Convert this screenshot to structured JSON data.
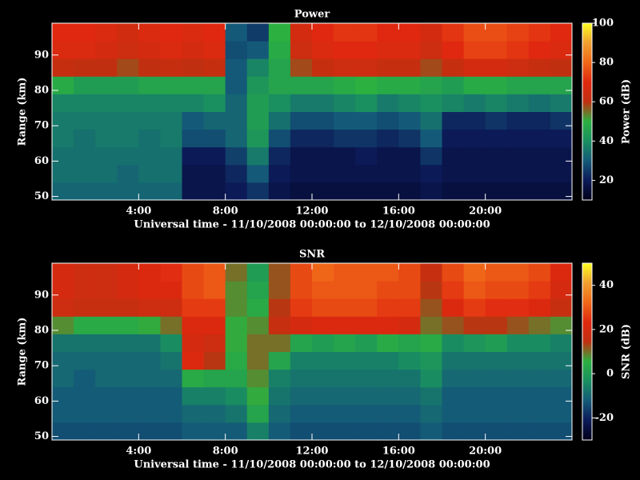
{
  "chart_data": [
    {
      "type": "heatmap",
      "title": "Power",
      "xlabel": "Universal time - 11/10/2008 00:00:00 to 12/10/2008 00:00:00",
      "ylabel": "Range (km)",
      "zlabel": "Power (dB)",
      "x": [
        0.5,
        1.5,
        2.5,
        3.5,
        4.5,
        5.5,
        6.5,
        7.5,
        8.5,
        9.5,
        10.5,
        11.5,
        12.5,
        13.5,
        14.5,
        15.5,
        16.5,
        17.5,
        18.5,
        19.5,
        20.5,
        21.5,
        22.5,
        23.5
      ],
      "y": [
        51.5,
        56.5,
        61.5,
        66.5,
        71.5,
        76.5,
        81.5,
        86.5,
        91.5,
        96.5
      ],
      "z": [
        [
          32,
          32,
          32,
          32,
          32,
          32,
          18,
          18,
          20,
          24,
          18,
          16,
          16,
          16,
          16,
          16,
          16,
          18,
          16,
          16,
          16,
          16,
          16,
          16
        ],
        [
          34,
          34,
          34,
          32,
          34,
          34,
          18,
          18,
          22,
          30,
          20,
          18,
          18,
          18,
          18,
          18,
          18,
          20,
          18,
          18,
          18,
          18,
          18,
          18
        ],
        [
          34,
          34,
          34,
          34,
          34,
          34,
          20,
          20,
          26,
          36,
          22,
          18,
          18,
          18,
          20,
          18,
          18,
          24,
          18,
          18,
          18,
          18,
          18,
          18
        ],
        [
          36,
          34,
          36,
          36,
          34,
          36,
          28,
          28,
          32,
          42,
          28,
          22,
          22,
          24,
          24,
          22,
          24,
          30,
          20,
          20,
          20,
          20,
          20,
          20
        ],
        [
          36,
          36,
          36,
          36,
          36,
          36,
          30,
          32,
          32,
          44,
          34,
          28,
          28,
          30,
          30,
          28,
          30,
          34,
          22,
          22,
          24,
          22,
          22,
          24
        ],
        [
          38,
          38,
          38,
          38,
          38,
          38,
          38,
          40,
          32,
          44,
          40,
          36,
          36,
          38,
          40,
          36,
          38,
          40,
          38,
          36,
          38,
          36,
          34,
          36
        ],
        [
          48,
          44,
          44,
          44,
          46,
          46,
          46,
          46,
          30,
          42,
          46,
          46,
          46,
          48,
          50,
          48,
          48,
          46,
          44,
          48,
          48,
          46,
          46,
          46
        ],
        [
          62,
          60,
          60,
          58,
          60,
          62,
          60,
          62,
          30,
          38,
          46,
          58,
          62,
          64,
          64,
          62,
          62,
          58,
          62,
          66,
          66,
          64,
          62,
          60
        ],
        [
          68,
          68,
          66,
          64,
          66,
          68,
          66,
          68,
          28,
          30,
          48,
          64,
          68,
          70,
          70,
          68,
          68,
          64,
          70,
          74,
          74,
          72,
          70,
          68
        ],
        [
          70,
          70,
          68,
          65,
          68,
          70,
          68,
          70,
          30,
          25,
          50,
          66,
          70,
          72,
          72,
          70,
          70,
          66,
          72,
          76,
          76,
          74,
          72,
          70
        ]
      ],
      "xlim": [
        0,
        24
      ],
      "ylim": [
        49,
        99
      ],
      "zlim": [
        10,
        100
      ],
      "xticks": [
        {
          "value": 4,
          "label": "4:00"
        },
        {
          "value": 8,
          "label": "8:00"
        },
        {
          "value": 12,
          "label": "12:00"
        },
        {
          "value": 16,
          "label": "16:00"
        },
        {
          "value": 20,
          "label": "20:00"
        }
      ],
      "yticks": [
        50,
        60,
        70,
        80,
        90
      ],
      "zticks": [
        20,
        40,
        60,
        80,
        100
      ],
      "colorscale": [
        "#000018",
        "#0c1a58",
        "#145a78",
        "#1a9060",
        "#2cb040",
        "#c03010",
        "#e02810",
        "#f06818",
        "#f0a030",
        "#ffff20"
      ]
    },
    {
      "type": "heatmap",
      "title": "SNR",
      "xlabel": "Universal time - 11/10/2008 00:00:00 to 12/10/2008 00:00:00",
      "ylabel": "Range (km)",
      "zlabel": "SNR (dB)",
      "x": [
        0.5,
        1.5,
        2.5,
        3.5,
        4.5,
        5.5,
        6.5,
        7.5,
        8.5,
        9.5,
        10.5,
        11.5,
        12.5,
        13.5,
        14.5,
        15.5,
        16.5,
        17.5,
        18.5,
        19.5,
        20.5,
        21.5,
        22.5,
        23.5
      ],
      "y": [
        51.5,
        56.5,
        61.5,
        66.5,
        71.5,
        76.5,
        81.5,
        86.5,
        91.5,
        96.5
      ],
      "z": [
        [
          -14,
          -14,
          -14,
          -14,
          -14,
          -14,
          -12,
          -12,
          -12,
          -6,
          -12,
          -14,
          -14,
          -14,
          -14,
          -14,
          -14,
          -12,
          -14,
          -14,
          -14,
          -14,
          -14,
          -14
        ],
        [
          -12,
          -12,
          -12,
          -12,
          -12,
          -12,
          -10,
          -10,
          -8,
          2,
          -10,
          -12,
          -12,
          -12,
          -12,
          -12,
          -12,
          -10,
          -12,
          -12,
          -12,
          -12,
          -12,
          -12
        ],
        [
          -12,
          -12,
          -12,
          -12,
          -12,
          -12,
          -6,
          -6,
          -4,
          6,
          -8,
          -10,
          -10,
          -10,
          -10,
          -10,
          -10,
          -8,
          -12,
          -12,
          -12,
          -12,
          -12,
          -12
        ],
        [
          -10,
          -12,
          -10,
          -10,
          -10,
          -10,
          4,
          2,
          2,
          8,
          -6,
          -8,
          -8,
          -8,
          -8,
          -8,
          -8,
          -4,
          -10,
          -10,
          -10,
          -10,
          -10,
          -10
        ],
        [
          -10,
          -10,
          -10,
          -10,
          -10,
          -8,
          22,
          14,
          4,
          10,
          2,
          -6,
          -6,
          -6,
          -6,
          -6,
          -4,
          -2,
          -8,
          -8,
          -8,
          -8,
          -8,
          -8
        ],
        [
          -8,
          -8,
          -8,
          -8,
          -8,
          -4,
          20,
          18,
          6,
          10,
          10,
          2,
          0,
          2,
          0,
          4,
          2,
          4,
          -4,
          -2,
          0,
          -4,
          -4,
          -6
        ],
        [
          8,
          4,
          4,
          4,
          6,
          10,
          22,
          22,
          6,
          8,
          16,
          20,
          22,
          22,
          22,
          22,
          20,
          10,
          12,
          14,
          14,
          12,
          10,
          8
        ],
        [
          18,
          16,
          16,
          16,
          18,
          18,
          26,
          26,
          8,
          4,
          14,
          26,
          28,
          28,
          28,
          26,
          26,
          12,
          22,
          26,
          24,
          24,
          22,
          16
        ],
        [
          20,
          18,
          18,
          20,
          22,
          22,
          28,
          30,
          8,
          2,
          12,
          28,
          30,
          30,
          30,
          28,
          28,
          14,
          26,
          30,
          28,
          28,
          26,
          20
        ],
        [
          20,
          18,
          18,
          20,
          22,
          24,
          28,
          30,
          10,
          0,
          12,
          28,
          32,
          30,
          30,
          30,
          28,
          16,
          28,
          32,
          30,
          30,
          28,
          22
        ]
      ],
      "xlim": [
        0,
        24
      ],
      "ylim": [
        49,
        99
      ],
      "zlim": [
        -30,
        50
      ],
      "xticks": [
        {
          "value": 4,
          "label": "4:00"
        },
        {
          "value": 8,
          "label": "8:00"
        },
        {
          "value": 12,
          "label": "12:00"
        },
        {
          "value": 16,
          "label": "16:00"
        },
        {
          "value": 20,
          "label": "20:00"
        }
      ],
      "yticks": [
        50,
        60,
        70,
        80,
        90
      ],
      "zticks": [
        -20,
        0,
        20,
        40
      ],
      "colorscale": [
        "#000018",
        "#0c1a58",
        "#145a78",
        "#1a9060",
        "#2cb040",
        "#c03010",
        "#e02810",
        "#f06818",
        "#f0a030",
        "#ffff20"
      ]
    }
  ]
}
